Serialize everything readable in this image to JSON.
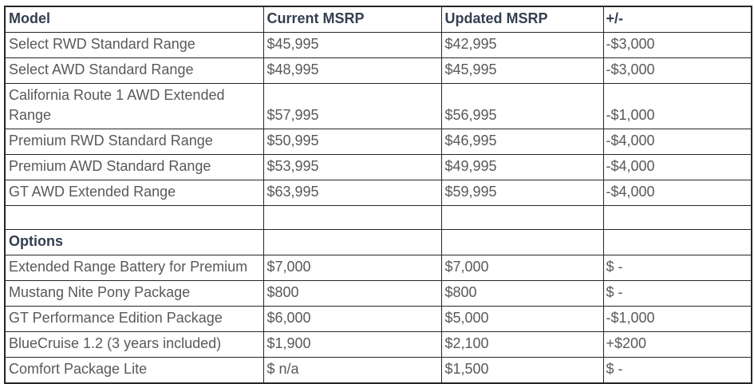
{
  "colors": {
    "background": "#ffffff",
    "header_text": "#333F50",
    "body_text": "#595959",
    "border": "#262626"
  },
  "chart_data": {
    "type": "table",
    "columns": [
      "Model",
      "Current MSRP",
      "Updated MSRP",
      "+/-"
    ],
    "rows": [
      {
        "model": "Select RWD Standard Range",
        "current_msrp": "$45,995",
        "updated_msrp": "$42,995",
        "delta": "-$3,000",
        "bold": false
      },
      {
        "model": "Select AWD Standard Range",
        "current_msrp": "$48,995",
        "updated_msrp": "$45,995",
        "delta": "-$3,000",
        "bold": false
      },
      {
        "model": "California Route 1 AWD Extended Range",
        "current_msrp": "$57,995",
        "updated_msrp": "$56,995",
        "delta": "-$1,000",
        "bold": false
      },
      {
        "model": "Premium RWD Standard Range",
        "current_msrp": "$50,995",
        "updated_msrp": "$46,995",
        "delta": "-$4,000",
        "bold": false
      },
      {
        "model": "Premium AWD Standard Range",
        "current_msrp": "$53,995",
        "updated_msrp": "$49,995",
        "delta": "-$4,000",
        "bold": false
      },
      {
        "model": "GT AWD Extended Range",
        "current_msrp": "$63,995",
        "updated_msrp": "$59,995",
        "delta": "-$4,000",
        "bold": false
      },
      {
        "model": "",
        "current_msrp": "",
        "updated_msrp": "",
        "delta": "",
        "bold": false
      },
      {
        "model": "Options",
        "current_msrp": "",
        "updated_msrp": "",
        "delta": "",
        "bold": true
      },
      {
        "model": "Extended Range Battery for Premium",
        "current_msrp": "$7,000",
        "updated_msrp": "$7,000",
        "delta": "$ -",
        "bold": false
      },
      {
        "model": "Mustang Nite Pony Package",
        "current_msrp": "$800",
        "updated_msrp": "$800",
        "delta": "$ -",
        "bold": false
      },
      {
        "model": "GT Performance Edition Package",
        "current_msrp": "$6,000",
        "updated_msrp": "$5,000",
        "delta": "-$1,000",
        "bold": false
      },
      {
        "model": "BlueCruise 1.2 (3 years included)",
        "current_msrp": "$1,900",
        "updated_msrp": "$2,100",
        "delta": "+$200",
        "bold": false
      },
      {
        "model": "Comfort Package Lite",
        "current_msrp": "$ n/a",
        "updated_msrp": "$1,500",
        "delta": "$ -",
        "bold": false
      }
    ]
  }
}
